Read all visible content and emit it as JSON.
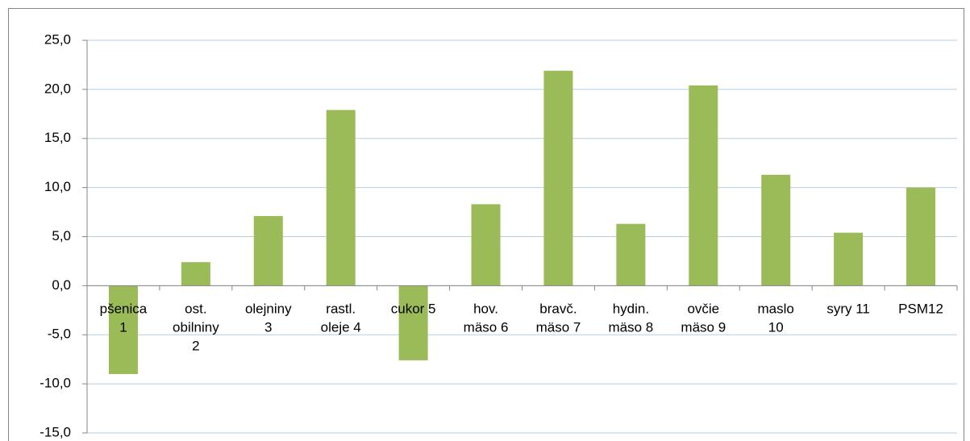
{
  "chart_data": {
    "type": "bar",
    "categories": [
      "pšenica\n1",
      "ost.\nobilniny\n2",
      "olejniny\n3",
      "rastl.\noleje 4",
      "cukor 5",
      "hov.\nmäso 6",
      "bravč.\nmäso 7",
      "hydin.\nmäso 8",
      "ovčie\nmäso 9",
      "maslo\n10",
      "syry 11",
      "PSM12"
    ],
    "values": [
      -9.0,
      2.4,
      7.1,
      17.9,
      -7.6,
      8.3,
      21.9,
      6.3,
      20.4,
      11.3,
      5.4,
      10.0
    ],
    "color": "#9bbb59",
    "ylim": [
      -15,
      25
    ],
    "yticks": [
      {
        "value": -15,
        "label": "-15,0"
      },
      {
        "value": -10,
        "label": "-10,0"
      },
      {
        "value": -5,
        "label": "-5,0"
      },
      {
        "value": 0,
        "label": "0,0"
      },
      {
        "value": 5,
        "label": "5,0"
      },
      {
        "value": 10,
        "label": "10,0"
      },
      {
        "value": 15,
        "label": "15,0"
      },
      {
        "value": 20,
        "label": "20,0"
      },
      {
        "value": 25,
        "label": "25,0"
      }
    ],
    "grid": true
  }
}
